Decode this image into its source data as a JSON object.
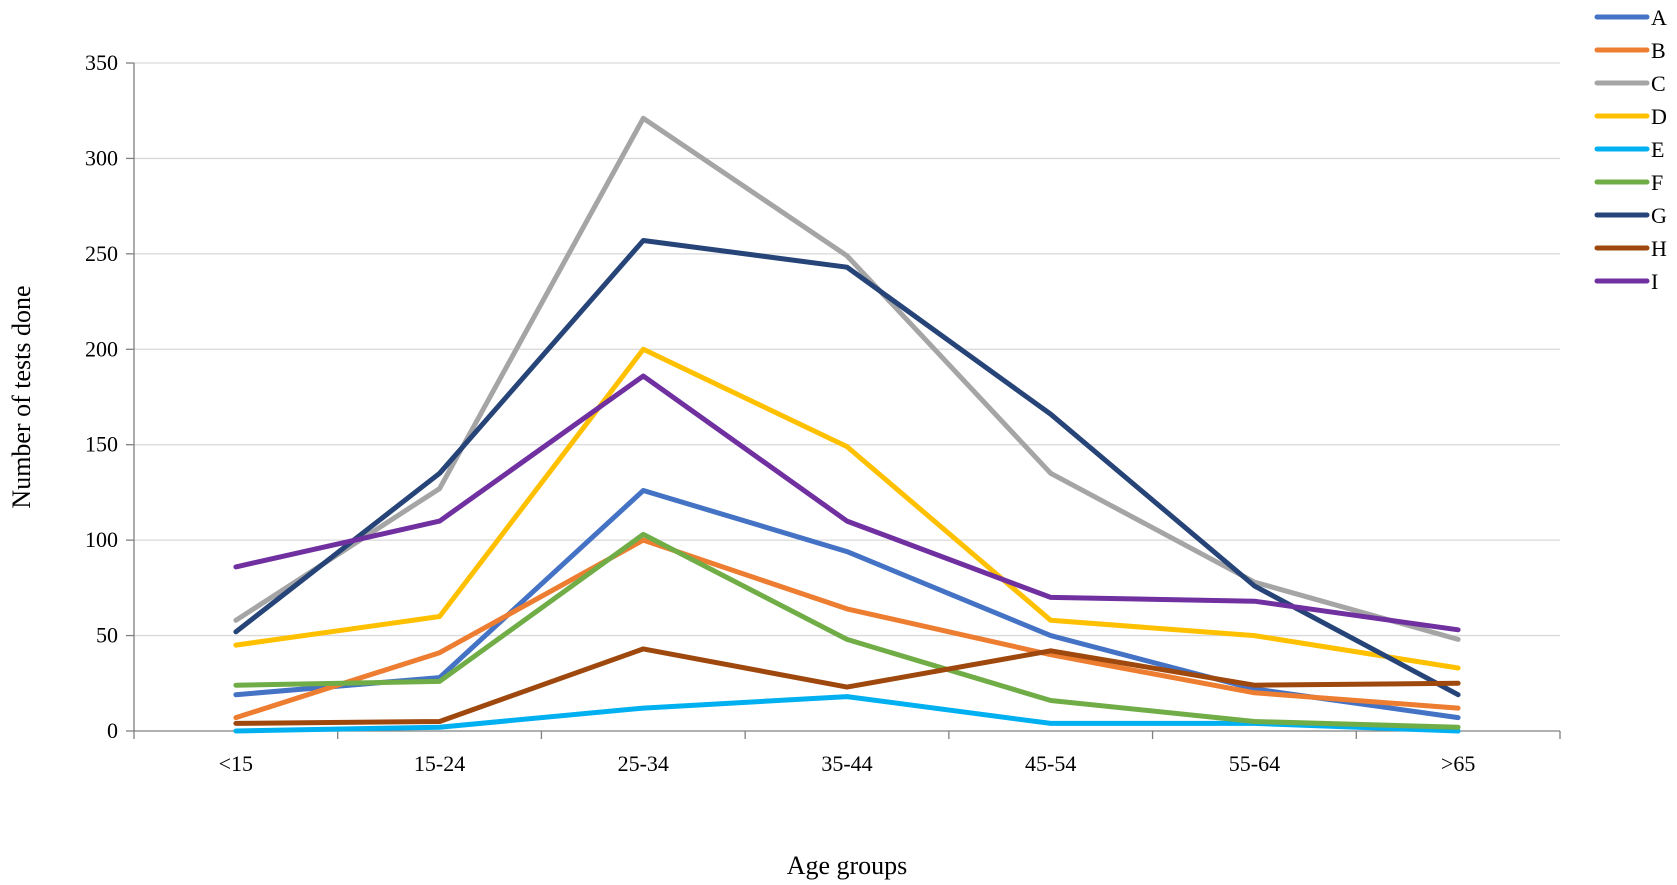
{
  "chart_data": {
    "type": "line",
    "title": "",
    "xlabel": "Age groups",
    "ylabel": "Number of tests done",
    "ylim": [
      0,
      350
    ],
    "yticks": [
      0,
      50,
      100,
      150,
      200,
      250,
      300,
      350
    ],
    "grid": true,
    "legend_position": "top-right",
    "categories": [
      "<15",
      "15-24",
      "25-34",
      "35-44",
      "45-54",
      "55-64",
      ">65"
    ],
    "series": [
      {
        "name": "A",
        "color": "#4472c4",
        "values": [
          19,
          28,
          126,
          94,
          50,
          22,
          7
        ]
      },
      {
        "name": "B",
        "color": "#ed7d31",
        "values": [
          7,
          41,
          100,
          64,
          40,
          20,
          12
        ]
      },
      {
        "name": "C",
        "color": "#a5a5a5",
        "values": [
          58,
          127,
          321,
          249,
          135,
          78,
          48
        ]
      },
      {
        "name": "D",
        "color": "#ffc000",
        "values": [
          45,
          60,
          200,
          149,
          58,
          50,
          33
        ]
      },
      {
        "name": "E",
        "color": "#00b0f0",
        "values": [
          0,
          2,
          12,
          18,
          4,
          4,
          0
        ]
      },
      {
        "name": "F",
        "color": "#70ad47",
        "values": [
          24,
          26,
          103,
          48,
          16,
          5,
          2
        ]
      },
      {
        "name": "G",
        "color": "#264478",
        "values": [
          52,
          135,
          257,
          243,
          166,
          76,
          19
        ]
      },
      {
        "name": "H",
        "color": "#9e480e",
        "values": [
          4,
          5,
          43,
          23,
          42,
          24,
          25
        ]
      },
      {
        "name": "I",
        "color": "#7030a0",
        "values": [
          86,
          110,
          186,
          110,
          70,
          68,
          53
        ]
      }
    ]
  }
}
